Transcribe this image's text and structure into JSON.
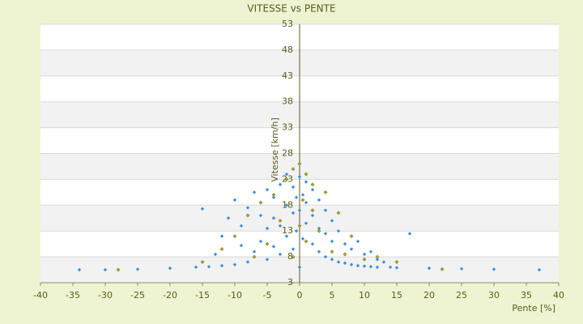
{
  "chart_data": {
    "type": "scatter",
    "title": "VITESSE vs PENTE",
    "x_label": "Pente [%]",
    "y_label": "Vitesse [km/h]",
    "xlim": [
      -40,
      40
    ],
    "xticks": [
      -40,
      -35,
      -30,
      -25,
      -20,
      -15,
      -10,
      -5,
      0,
      5,
      10,
      15,
      20,
      25,
      30,
      35,
      40
    ],
    "ylim": [
      3,
      53
    ],
    "yticks": [
      3,
      8,
      13,
      18,
      23,
      28,
      33,
      38,
      43,
      48,
      53
    ],
    "grid": true,
    "series": [
      {
        "color": "#3b8fd9",
        "x": [
          -34,
          -30,
          -25,
          -20,
          -16,
          -15,
          -14,
          -13,
          -12,
          -12,
          -11,
          -10,
          -10,
          -9,
          -9,
          -8,
          -8,
          -7,
          -7,
          -6,
          -6,
          -5,
          -5,
          -5,
          -4,
          -4,
          -4,
          -3,
          -3,
          -3,
          -2,
          -2,
          -2,
          -1,
          -1,
          -1,
          -0.5,
          -0.5,
          0,
          0,
          0,
          0.5,
          0.5,
          1,
          1,
          1,
          2,
          2,
          2,
          3,
          3,
          3,
          4,
          4,
          4,
          5,
          5,
          5,
          6,
          6,
          7,
          7,
          8,
          8,
          9,
          9,
          10,
          10,
          11,
          11,
          12,
          12,
          13,
          14,
          15,
          17,
          20,
          25,
          30,
          37
        ],
        "values": [
          5.5,
          5.5,
          5.6,
          5.8,
          6.0,
          17.3,
          6.1,
          8.5,
          6.3,
          12.0,
          15.5,
          6.5,
          19.0,
          10.2,
          14.0,
          7.0,
          17.5,
          9.0,
          20.5,
          11.0,
          16.0,
          7.5,
          13.5,
          21.0,
          10.0,
          15.5,
          19.5,
          8.5,
          14.0,
          22.0,
          12.0,
          18.0,
          24.0,
          9.5,
          16.5,
          21.5,
          13.0,
          19.5,
          6.0,
          17.0,
          23.5,
          11.5,
          20.0,
          14.5,
          18.5,
          22.5,
          10.5,
          16.0,
          21.0,
          9.0,
          13.5,
          19.0,
          8.0,
          12.5,
          17.0,
          7.5,
          11.0,
          15.0,
          7.0,
          13.0,
          6.8,
          10.5,
          6.5,
          9.5,
          6.3,
          11.0,
          6.2,
          8.5,
          6.1,
          9.0,
          6.0,
          7.5,
          7.0,
          6.0,
          5.9,
          12.5,
          5.8,
          5.7,
          5.6,
          5.5
        ]
      },
      {
        "color": "#a9a32a",
        "x": [
          -28,
          -15,
          -12,
          -10,
          -8,
          -7,
          -6,
          -5,
          -4,
          -3,
          -2,
          -1,
          -1,
          0,
          0,
          0.5,
          1,
          1,
          2,
          2,
          3,
          4,
          5,
          6,
          7,
          8,
          10,
          12,
          15,
          22
        ],
        "values": [
          5.5,
          7.0,
          9.5,
          12.0,
          16.0,
          8.0,
          18.5,
          10.5,
          20.0,
          15.0,
          23.0,
          25.0,
          8.0,
          26.0,
          14.0,
          19.0,
          24.0,
          11.0,
          22.0,
          17.0,
          13.0,
          20.5,
          9.0,
          16.5,
          8.5,
          12.0,
          7.5,
          8.0,
          7.0,
          5.6
        ]
      }
    ]
  }
}
